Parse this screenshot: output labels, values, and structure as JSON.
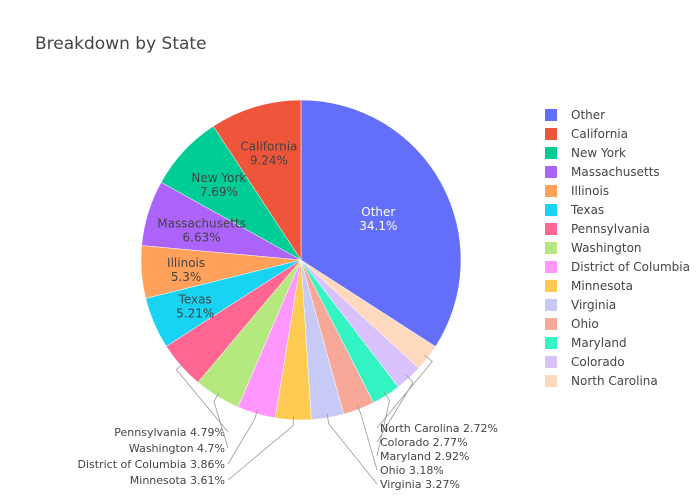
{
  "chart_data": {
    "type": "pie",
    "title": "Breakdown by State",
    "categories": [
      "Other",
      "California",
      "New York",
      "Massachusetts",
      "Illinois",
      "Texas",
      "Pennsylvania",
      "Washington",
      "District of Columbia",
      "Minnesota",
      "Virginia",
      "Ohio",
      "Maryland",
      "Colorado",
      "North Carolina"
    ],
    "values": [
      34.1,
      9.24,
      7.69,
      6.63,
      5.3,
      5.21,
      4.79,
      4.7,
      3.86,
      3.61,
      3.27,
      3.18,
      2.92,
      2.77,
      2.72
    ],
    "labels": [
      "34.1%",
      "9.24%",
      "7.69%",
      "6.63%",
      "5.3%",
      "5.21%",
      "4.79%",
      "4.7%",
      "3.86%",
      "3.61%",
      "3.27%",
      "3.18%",
      "2.92%",
      "2.77%",
      "2.72%"
    ],
    "colors": [
      "#636efa",
      "#EF553B",
      "#00cc96",
      "#ab63fa",
      "#FFA15A",
      "#19d3f3",
      "#FF6692",
      "#B6E880",
      "#FF97FF",
      "#FECB52",
      "#c7c9f6",
      "#f7a898",
      "#33f5c4",
      "#d9c1fc",
      "#ffd9be"
    ],
    "legend_position": "right",
    "direction": "clockwise",
    "start": "top"
  }
}
